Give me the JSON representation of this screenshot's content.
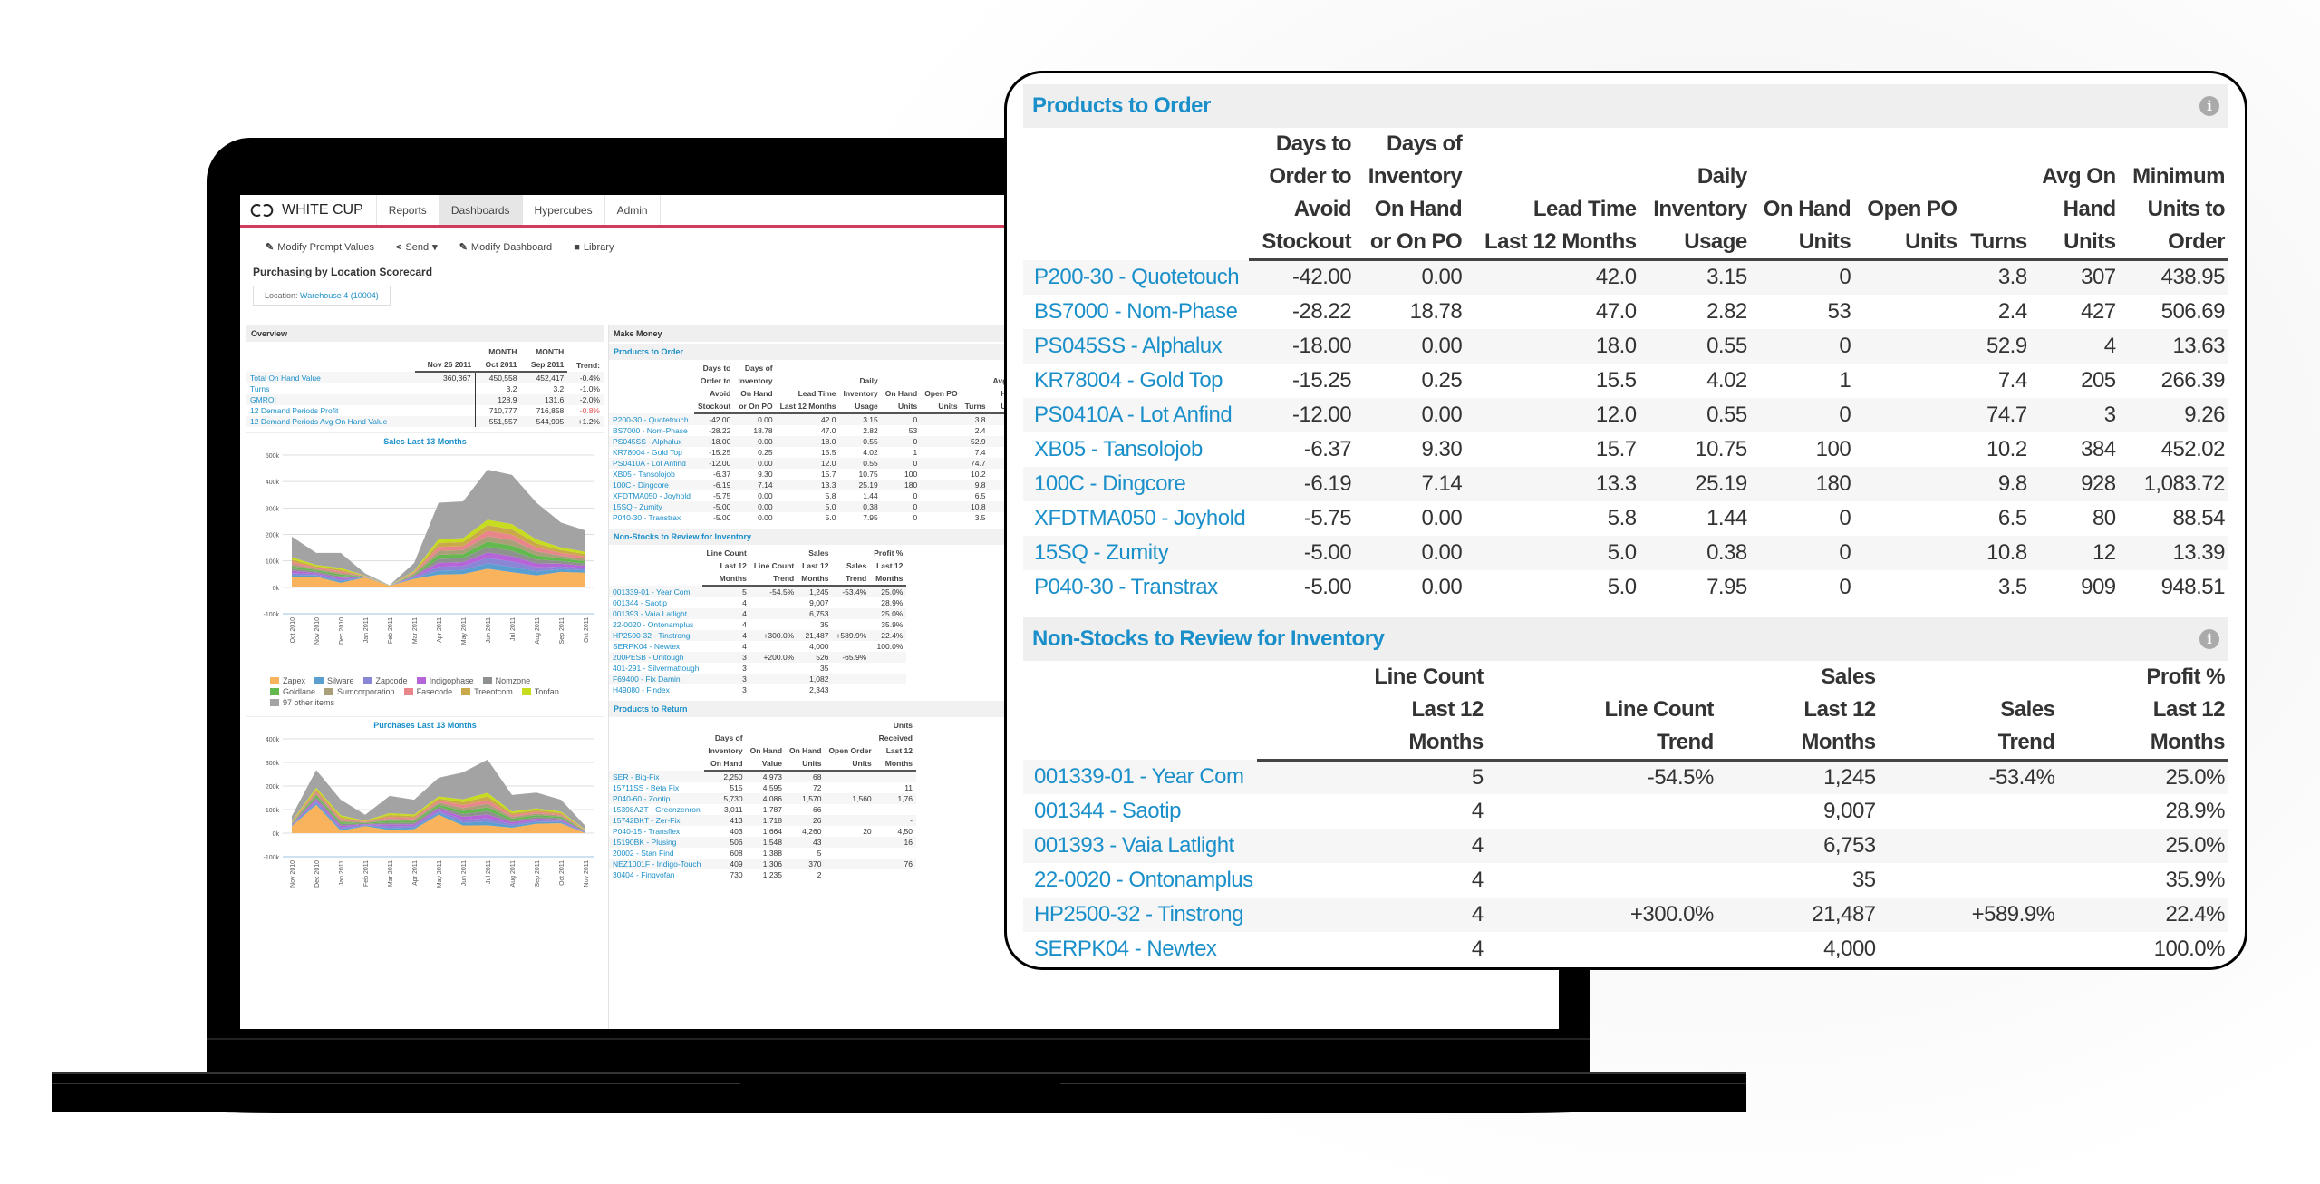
{
  "app": {
    "logo_text": "WHITE CUP",
    "nav_tabs": [
      {
        "label": "Reports",
        "active": false
      },
      {
        "label": "Dashboards",
        "active": true
      },
      {
        "label": "Hypercubes",
        "active": false
      },
      {
        "label": "Admin",
        "active": false
      }
    ],
    "accent_color": "#d23c5a",
    "link_color": "#1a8fc9",
    "toolbar": {
      "modify_prompt": "Modify Prompt Values",
      "send": "Send",
      "modify_dashboard": "Modify Dashboard",
      "library": "Library"
    },
    "page_title": "Purchasing by Location Scorecard",
    "location_label": "Location:",
    "location_value": "Warehouse 4 (10004)"
  },
  "overview": {
    "title": "Overview",
    "columns": [
      "Nov 26 2011",
      "MONTH Oct 2011",
      "MONTH Sep 2011",
      "Trend:"
    ],
    "col_top": [
      "",
      "MONTH",
      "MONTH",
      ""
    ],
    "col_bottom": [
      "Nov 26 2011",
      "Oct 2011",
      "Sep 2011",
      "Trend:"
    ],
    "rows": [
      {
        "label": "Total On Hand Value",
        "v1": "360,367",
        "v2": "450,558",
        "v3": "452,417",
        "trend": "-0.4%"
      },
      {
        "label": "Turns",
        "v1": "",
        "v2": "3.2",
        "v3": "3.2",
        "trend": "-1.0%"
      },
      {
        "label": "GMROI",
        "v1": "",
        "v2": "128.9",
        "v3": "131.6",
        "trend": "-2.0%"
      },
      {
        "label": "12 Demand Periods Profit",
        "v1": "",
        "v2": "710,777",
        "v3": "716,858",
        "trend": "-0.8%"
      },
      {
        "label": "12 Demand Periods Avg On Hand Value",
        "v1": "",
        "v2": "551,557",
        "v3": "544,905",
        "trend": "+1.2%"
      }
    ]
  },
  "chart_data": [
    {
      "type": "area",
      "title": "Sales Last 13 Months",
      "stacked": true,
      "x": [
        "Oct 2010",
        "Nov 2010",
        "Dec 2010",
        "Jan 2011",
        "Feb 2011",
        "Mar 2011",
        "Apr 2011",
        "May 2011",
        "Jun 2011",
        "Jul 2011",
        "Aug 2011",
        "Sep 2011",
        "Oct 2011"
      ],
      "yticks": [
        "500k",
        "400k",
        "300k",
        "200k",
        "100k",
        "0k",
        "-100k"
      ],
      "ylim": [
        -100000,
        500000
      ],
      "legend": [
        "Zapex",
        "Silware",
        "Zapcode",
        "Indigophase",
        "Nomzone",
        "Goldlane",
        "Sumcorporation",
        "Fasecode",
        "Treeotcom",
        "Tonfan",
        "97 other items"
      ],
      "colors": [
        "#f9b35c",
        "#5a9fcf",
        "#8b85d6",
        "#b565d8",
        "#8e928e",
        "#63b94f",
        "#a9a07a",
        "#e8868c",
        "#c9a949",
        "#c7dc1e",
        "#a3a3a3"
      ],
      "totals": [
        192000,
        130000,
        130000,
        52000,
        8000,
        92000,
        320000,
        325000,
        445000,
        425000,
        320000,
        245000,
        215000
      ],
      "series_base_zapex": [
        37000,
        40000,
        17000,
        37000,
        6000,
        32000,
        48000,
        50000,
        70000,
        57000,
        45000,
        58000,
        55000
      ],
      "grid": true,
      "legend_position": "bottom"
    },
    {
      "type": "area",
      "title": "Purchases Last 13 Months",
      "stacked": true,
      "x": [
        "Nov 2010",
        "Dec 2010",
        "Jan 2011",
        "Feb 2011",
        "Mar 2011",
        "Apr 2011",
        "May 2011",
        "Jun 2011",
        "Jul 2011",
        "Aug 2011",
        "Sep 2011",
        "Oct 2011",
        "Nov 2011"
      ],
      "yticks": [
        "400k",
        "300k",
        "200k",
        "100k",
        "0k",
        "-100k"
      ],
      "ylim": [
        -100000,
        400000
      ],
      "totals": [
        72000,
        268000,
        142000,
        78000,
        158000,
        142000,
        235000,
        258000,
        312000,
        162000,
        172000,
        142000,
        30000
      ],
      "series_base_zapex": [
        30000,
        120000,
        10000,
        30000,
        13000,
        17000,
        78000,
        32000,
        33000,
        23000,
        40000,
        42000,
        0
      ],
      "grid": true
    }
  ],
  "make_money": {
    "title": "Make Money",
    "products_to_order": {
      "title": "Products to Order",
      "headers": [
        [
          "Days to",
          "Order to",
          "Avoid",
          "Stockout"
        ],
        [
          "Days of",
          "Inventory",
          "On Hand",
          "or On PO"
        ],
        [
          "",
          "",
          "Lead Time",
          "Last 12 Months"
        ],
        [
          "",
          "Daily",
          "Inventory",
          "Usage"
        ],
        [
          "",
          "",
          "On Hand",
          "Units"
        ],
        [
          "",
          "",
          "Open PO",
          "Units"
        ],
        [
          "",
          "",
          "",
          "Turns"
        ],
        [
          "",
          "Avg On",
          "Hand",
          "Units"
        ],
        [
          "",
          "Minimum",
          "Units to",
          "Order"
        ]
      ],
      "rows": [
        [
          "P200-30 - Quotetouch",
          "-42.00",
          "0.00",
          "42.0",
          "3.15",
          "0",
          "",
          "3.8",
          "307",
          "438.95"
        ],
        [
          "BS7000 - Nom-Phase",
          "-28.22",
          "18.78",
          "47.0",
          "2.82",
          "53",
          "",
          "2.4",
          "427",
          "506.69"
        ],
        [
          "PS045SS - Alphalux",
          "-18.00",
          "0.00",
          "18.0",
          "0.55",
          "0",
          "",
          "52.9",
          "4",
          "13.63"
        ],
        [
          "KR78004 - Gold Top",
          "-15.25",
          "0.25",
          "15.5",
          "4.02",
          "1",
          "",
          "7.4",
          "205",
          "266.39"
        ],
        [
          "PS0410A - Lot Anfind",
          "-12.00",
          "0.00",
          "12.0",
          "0.55",
          "0",
          "",
          "74.7",
          "3",
          "9.26"
        ],
        [
          "XB05 - Tansolojob",
          "-6.37",
          "9.30",
          "15.7",
          "10.75",
          "100",
          "",
          "10.2",
          "384",
          "452.02"
        ],
        [
          "100C - Dingcore",
          "-6.19",
          "7.14",
          "13.3",
          "25.19",
          "180",
          "",
          "9.8",
          "928",
          "1,083.72"
        ],
        [
          "XFDTMA050 - Joyhold",
          "-5.75",
          "0.00",
          "5.8",
          "1.44",
          "0",
          "",
          "6.5",
          "80",
          "88.54"
        ],
        [
          "15SQ - Zumity",
          "-5.00",
          "0.00",
          "5.0",
          "0.38",
          "0",
          "",
          "10.8",
          "12",
          "13.39"
        ],
        [
          "P040-30 - Transtrax",
          "-5.00",
          "0.00",
          "5.0",
          "7.95",
          "0",
          "",
          "3.5",
          "909",
          "948.51"
        ]
      ]
    },
    "non_stocks": {
      "title": "Non-Stocks to Review for Inventory",
      "headers": [
        [
          "Line Count",
          "Last 12",
          "Months"
        ],
        [
          "",
          "Line Count",
          "Trend"
        ],
        [
          "Sales",
          "Last 12",
          "Months"
        ],
        [
          "",
          "Sales",
          "Trend"
        ],
        [
          "Profit %",
          "Last 12",
          "Months"
        ]
      ],
      "rows": [
        [
          "001339-01 - Year Com",
          "5",
          "-54.5%",
          "1,245",
          "-53.4%",
          "25.0%"
        ],
        [
          "001344 - Saotip",
          "4",
          "",
          "9,007",
          "",
          "28.9%"
        ],
        [
          "001393 - Vaia Latlight",
          "4",
          "",
          "6,753",
          "",
          "25.0%"
        ],
        [
          "22-0020 - Ontonamplus",
          "4",
          "",
          "35",
          "",
          "35.9%"
        ],
        [
          "HP2500-32 - Tinstrong",
          "4",
          "+300.0%",
          "21,487",
          "+589.9%",
          "22.4%"
        ],
        [
          "SERPK04 - Newtex",
          "4",
          "",
          "4,000",
          "",
          "100.0%"
        ],
        [
          "200PESB - Unitough",
          "3",
          "+200.0%",
          "526",
          "-65.9%",
          ""
        ],
        [
          "401-291 - Silvermattough",
          "3",
          "",
          "35",
          "",
          ""
        ],
        [
          "F69400 - Fix Damin",
          "3",
          "",
          "1,082",
          "",
          ""
        ],
        [
          "H49080 - Findex",
          "3",
          "",
          "2,343",
          "",
          ""
        ]
      ]
    },
    "products_to_return": {
      "title": "Products to Return",
      "headers": [
        [
          "Days of",
          "Inventory",
          "On Hand"
        ],
        [
          "",
          "On Hand",
          "Value"
        ],
        [
          "",
          "On Hand",
          "Units"
        ],
        [
          "",
          "Open Order",
          "Units"
        ],
        [
          "Units",
          "Received",
          "Last 12",
          "Months"
        ]
      ],
      "rows": [
        [
          "SER - Big-Fix",
          "2,250",
          "4,973",
          "68",
          "",
          ""
        ],
        [
          "15711SS - Beta Fix",
          "515",
          "4,595",
          "72",
          "",
          "11"
        ],
        [
          "P040-60 - Zontip",
          "5,730",
          "4,086",
          "1,570",
          "1,560",
          "1,76"
        ],
        [
          "15398AZT - Greenzenron",
          "3,011",
          "1,787",
          "66",
          "",
          ""
        ],
        [
          "15742BKT - Zer-Fix",
          "413",
          "1,718",
          "26",
          "",
          "-"
        ],
        [
          "P040-15 - Transflex",
          "403",
          "1,664",
          "4,260",
          "20",
          "4,50"
        ],
        [
          "15190BK - Plusing",
          "506",
          "1,548",
          "43",
          "",
          "16"
        ],
        [
          "20002 - Stan Find",
          "608",
          "1,388",
          "5",
          "",
          ""
        ],
        [
          "NEZ1001F - Indigo-Touch",
          "409",
          "1,306",
          "370",
          "",
          "76"
        ],
        [
          "30404 - Finqvofan",
          "730",
          "1,235",
          "2",
          "",
          ""
        ]
      ]
    }
  },
  "icons": {
    "info": "i",
    "pencil": "✎",
    "share": "<",
    "edit": "✎",
    "book": "■",
    "caret": "▾"
  }
}
